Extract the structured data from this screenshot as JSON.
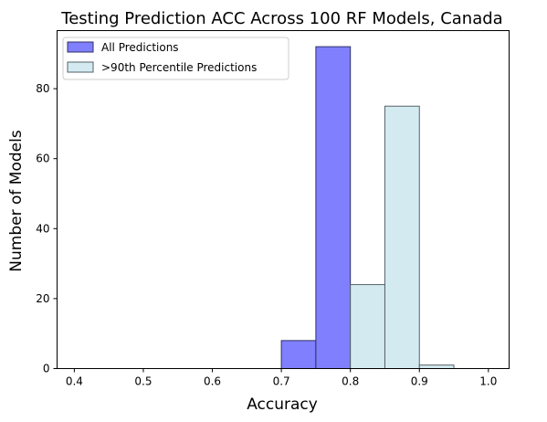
{
  "chart_data": {
    "type": "bar",
    "title": "Testing Prediction ACC Across 100 RF Models, Canada",
    "xlabel": "Accuracy",
    "ylabel": "Number of Models",
    "xlim": [
      0.375,
      1.03
    ],
    "ylim": [
      0,
      96.6
    ],
    "x_ticks": [
      0.4,
      0.5,
      0.6,
      0.7,
      0.8,
      0.9,
      1.0
    ],
    "x_tick_labels": [
      "0.4",
      "0.5",
      "0.6",
      "0.7",
      "0.8",
      "0.9",
      "1.0"
    ],
    "y_ticks": [
      0,
      20,
      40,
      60,
      80
    ],
    "y_tick_labels": [
      "0",
      "20",
      "40",
      "60",
      "80"
    ],
    "grid": false,
    "legend_position": "top-left",
    "series": [
      {
        "name": "All Predictions",
        "color": "#8080ff",
        "bins": [
          {
            "x0": 0.7,
            "x1": 0.75,
            "value": 8
          },
          {
            "x0": 0.75,
            "x1": 0.8,
            "value": 92
          }
        ]
      },
      {
        "name": ">90th Percentile Predictions",
        "color": "#d3eaf0",
        "bins": [
          {
            "x0": 0.8,
            "x1": 0.85,
            "value": 24
          },
          {
            "x0": 0.85,
            "x1": 0.9,
            "value": 75
          },
          {
            "x0": 0.9,
            "x1": 0.95,
            "value": 1
          }
        ]
      }
    ]
  }
}
